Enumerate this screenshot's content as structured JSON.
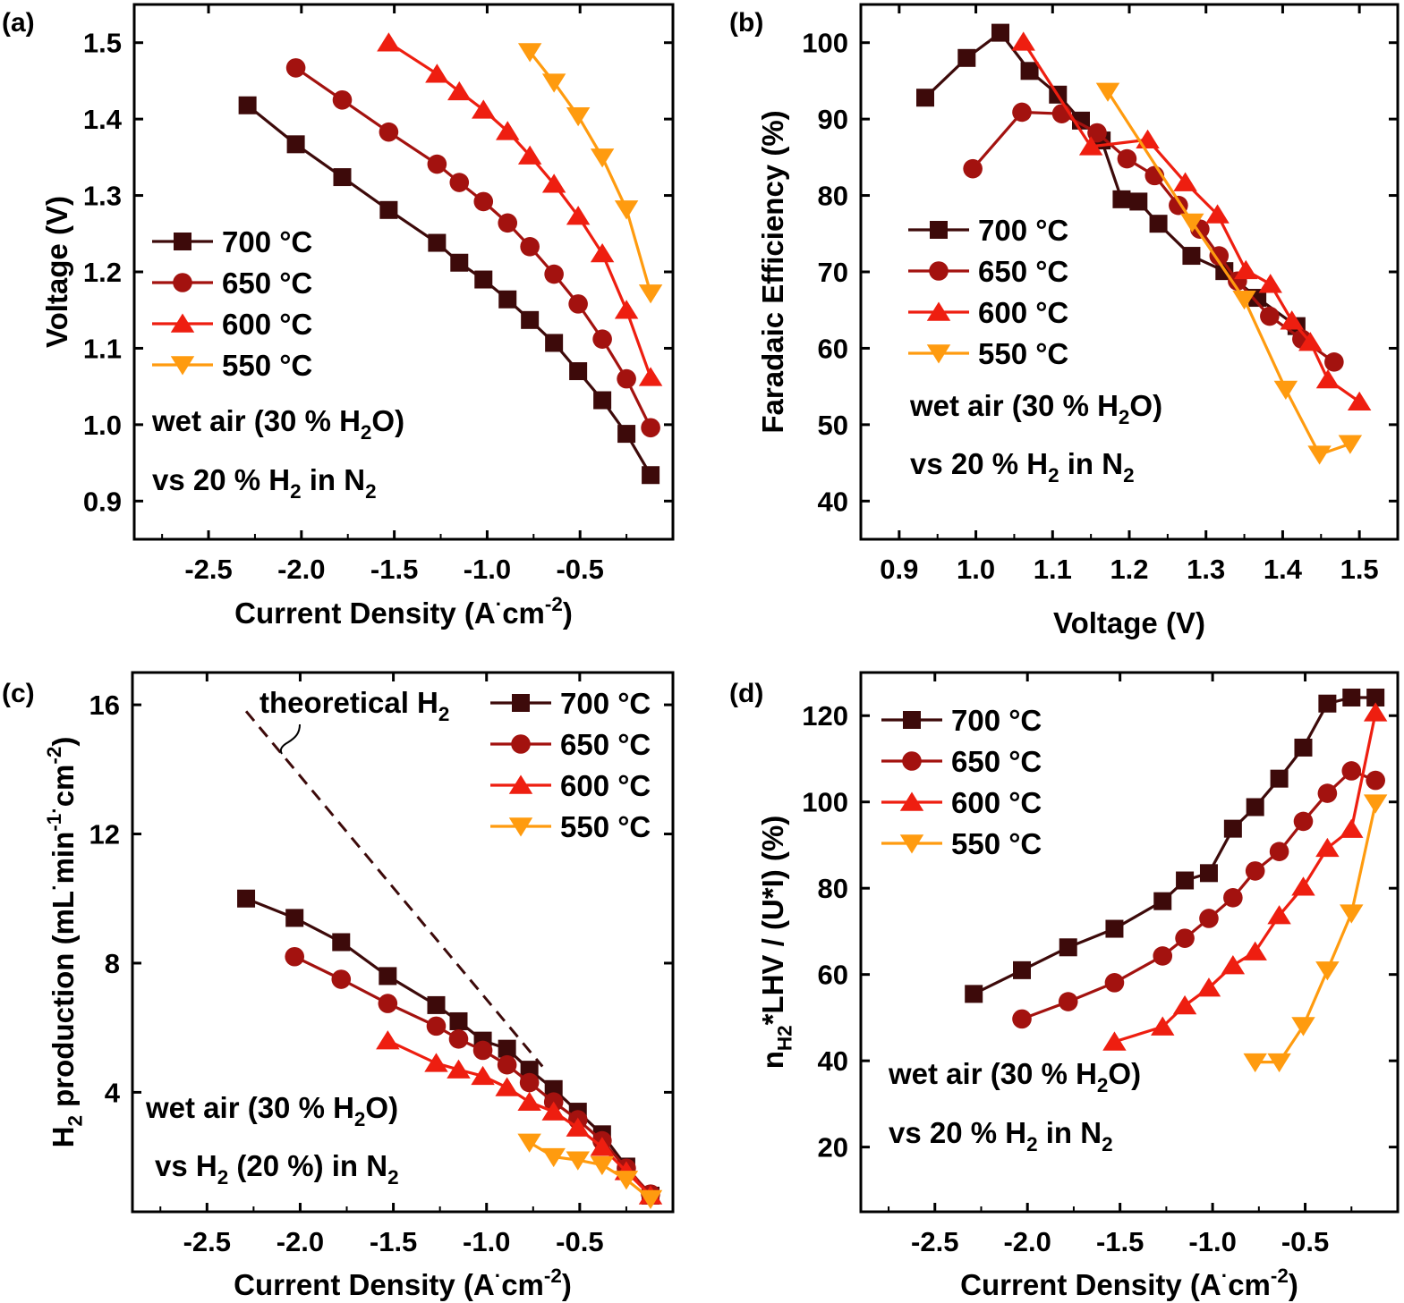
{
  "colors": {
    "c700": "#3d0a0a",
    "c650": "#a3120f",
    "c600": "#ee1e10",
    "c550": "#ff9b0f",
    "axis": "#000000",
    "dashed": "#3d0a0a"
  },
  "chart_data": [
    {
      "panel": "(a)",
      "type": "line",
      "xlabel": "Current Density (A·cm-2)",
      "ylabel": "Voltage (V)",
      "xlim": [
        -2.9,
        0.0
      ],
      "ylim": [
        0.85,
        1.55
      ],
      "xticks": [
        "-2.5",
        "-2.0",
        "-1.5",
        "-1.0",
        "-0.5"
      ],
      "yticks": [
        "0.9",
        "1.0",
        "1.1",
        "1.2",
        "1.3",
        "1.4",
        "1.5"
      ],
      "legend": [
        "700 °C",
        "650 °C",
        "600 °C",
        "550 °C"
      ],
      "annotations": [
        "wet air (30 % H2O)",
        "vs 20 % H2 in N2"
      ],
      "series": [
        {
          "name": "700 °C",
          "marker": "square",
          "x": [
            -2.29,
            -2.03,
            -1.78,
            -1.53,
            -1.27,
            -1.15,
            -1.02,
            -0.89,
            -0.77,
            -0.64,
            -0.51,
            -0.38,
            -0.25,
            -0.12
          ],
          "y": [
            1.418,
            1.367,
            1.324,
            1.281,
            1.238,
            1.212,
            1.19,
            1.164,
            1.137,
            1.107,
            1.07,
            1.032,
            0.988,
            0.934
          ]
        },
        {
          "name": "650 °C",
          "marker": "circle",
          "x": [
            -2.03,
            -1.78,
            -1.53,
            -1.27,
            -1.15,
            -1.02,
            -0.89,
            -0.77,
            -0.64,
            -0.51,
            -0.38,
            -0.25,
            -0.12
          ],
          "y": [
            1.467,
            1.425,
            1.383,
            1.341,
            1.317,
            1.292,
            1.264,
            1.233,
            1.197,
            1.158,
            1.112,
            1.06,
            0.996
          ]
        },
        {
          "name": "600 °C",
          "marker": "triangle-up",
          "x": [
            -1.53,
            -1.27,
            -1.15,
            -1.02,
            -0.89,
            -0.77,
            -0.64,
            -0.51,
            -0.38,
            -0.25,
            -0.12
          ],
          "y": [
            1.5,
            1.459,
            1.436,
            1.412,
            1.384,
            1.352,
            1.315,
            1.273,
            1.224,
            1.15,
            1.062
          ]
        },
        {
          "name": "550 °C",
          "marker": "triangle-down",
          "x": [
            -0.77,
            -0.64,
            -0.51,
            -0.38,
            -0.25,
            -0.12
          ],
          "y": [
            1.488,
            1.448,
            1.404,
            1.35,
            1.282,
            1.172
          ]
        }
      ]
    },
    {
      "panel": "(b)",
      "type": "line",
      "xlabel": "Voltage (V)",
      "ylabel": "Faradaic Efficiency (%)",
      "xlim": [
        0.85,
        1.55
      ],
      "ylim": [
        35,
        105
      ],
      "xticks": [
        "0.9",
        "1.0",
        "1.1",
        "1.2",
        "1.3",
        "1.4",
        "1.5"
      ],
      "yticks": [
        "40",
        "50",
        "60",
        "70",
        "80",
        "90",
        "100"
      ],
      "legend": [
        "700 °C",
        "650 °C",
        "600 °C",
        "550 °C"
      ],
      "annotations": [
        "wet air (30 % H2O)",
        "vs 20 % H2 in N2"
      ],
      "series": [
        {
          "name": "700 °C",
          "marker": "square",
          "x": [
            0.934,
            0.988,
            1.032,
            1.07,
            1.107,
            1.137,
            1.164,
            1.19,
            1.212,
            1.238,
            1.281,
            1.324,
            1.367,
            1.418
          ],
          "y": [
            92.8,
            98.0,
            101.3,
            96.3,
            93.2,
            89.8,
            87.2,
            79.5,
            79.2,
            76.3,
            72.1,
            70.1,
            66.6,
            62.9
          ]
        },
        {
          "name": "650 °C",
          "marker": "circle",
          "x": [
            0.996,
            1.06,
            1.112,
            1.158,
            1.197,
            1.233,
            1.264,
            1.292,
            1.317,
            1.341,
            1.383,
            1.425,
            1.467
          ],
          "y": [
            83.5,
            90.9,
            90.7,
            88.2,
            84.8,
            82.6,
            78.7,
            75.6,
            72.1,
            68.8,
            64.2,
            61.2,
            58.2
          ]
        },
        {
          "name": "600 °C",
          "marker": "triangle-up",
          "x": [
            1.062,
            1.15,
            1.224,
            1.273,
            1.315,
            1.352,
            1.384,
            1.412,
            1.436,
            1.459,
            1.5
          ],
          "y": [
            100.1,
            86.4,
            87.3,
            81.7,
            77.5,
            70.2,
            68.4,
            63.6,
            60.8,
            55.9,
            53.0
          ]
        },
        {
          "name": "550 °C",
          "marker": "triangle-down",
          "x": [
            1.172,
            1.282,
            1.35,
            1.404,
            1.448,
            1.488
          ],
          "y": [
            93.6,
            76.5,
            66.4,
            54.6,
            46.1,
            47.5
          ]
        }
      ]
    },
    {
      "panel": "(c)",
      "type": "line",
      "xlabel": "Current Density (A·cm-2)",
      "ylabel": "H2 production (mL·min-1·cm-2)",
      "xlim": [
        -2.9,
        0.0
      ],
      "ylim": [
        0.3,
        17.0
      ],
      "xticks": [
        "-2.5",
        "-2.0",
        "-1.5",
        "-1.0",
        "-0.5"
      ],
      "yticks": [
        "4",
        "8",
        "12",
        "16"
      ],
      "legend": [
        "700 °C",
        "650 °C",
        "600 °C",
        "550 °C"
      ],
      "annotations": [
        "theoretical H2",
        "wet air (30 % H2O)",
        "vs H2 (20 %) in N2"
      ],
      "theoretical": {
        "x": [
          -2.29,
          -0.7
        ],
        "y": [
          15.8,
          4.8
        ]
      },
      "series": [
        {
          "name": "700 °C",
          "marker": "square",
          "x": [
            -2.29,
            -2.03,
            -1.78,
            -1.53,
            -1.27,
            -1.15,
            -1.02,
            -0.89,
            -0.77,
            -0.64,
            -0.51,
            -0.38,
            -0.25,
            -0.12
          ],
          "y": [
            10.0,
            9.4,
            8.65,
            7.6,
            6.7,
            6.2,
            5.6,
            5.35,
            4.7,
            4.1,
            3.4,
            2.7,
            1.7,
            0.8
          ]
        },
        {
          "name": "650 °C",
          "marker": "circle",
          "x": [
            -2.03,
            -1.78,
            -1.53,
            -1.27,
            -1.15,
            -1.02,
            -0.89,
            -0.77,
            -0.64,
            -0.51,
            -0.38,
            -0.25,
            -0.12
          ],
          "y": [
            8.2,
            7.5,
            6.75,
            6.05,
            5.65,
            5.3,
            4.85,
            4.3,
            3.7,
            3.15,
            2.5,
            1.65,
            0.85
          ]
        },
        {
          "name": "600 °C",
          "marker": "triangle-up",
          "x": [
            -1.53,
            -1.27,
            -1.15,
            -1.02,
            -0.89,
            -0.77,
            -0.64,
            -0.51,
            -0.38,
            -0.25,
            -0.12
          ],
          "y": [
            5.6,
            4.9,
            4.7,
            4.5,
            4.15,
            3.7,
            3.4,
            2.9,
            2.3,
            1.55,
            0.8
          ]
        },
        {
          "name": "550 °C",
          "marker": "triangle-down",
          "x": [
            -0.77,
            -0.64,
            -0.51,
            -0.38,
            -0.25,
            -0.12
          ],
          "y": [
            2.45,
            2.0,
            1.9,
            1.75,
            1.3,
            0.7
          ]
        }
      ]
    },
    {
      "panel": "(d)",
      "type": "line",
      "xlabel": "Current Density (A·cm-2)",
      "ylabel": "nH2*LHV / (U*I) (%)",
      "xlim": [
        -2.9,
        0.0
      ],
      "ylim": [
        5,
        130
      ],
      "xticks": [
        "-2.5",
        "-2.0",
        "-1.5",
        "-1.0",
        "-0.5"
      ],
      "yticks": [
        "20",
        "40",
        "60",
        "80",
        "100",
        "120"
      ],
      "legend": [
        "700 °C",
        "650 °C",
        "600 °C",
        "550 °C"
      ],
      "annotations": [
        "wet air (30 % H2O)",
        "vs 20 % H2 in N2"
      ],
      "series": [
        {
          "name": "700 °C",
          "marker": "square",
          "x": [
            -2.29,
            -2.03,
            -1.78,
            -1.53,
            -1.27,
            -1.15,
            -1.02,
            -0.89,
            -0.77,
            -0.64,
            -0.51,
            -0.38,
            -0.25,
            -0.12
          ],
          "y": [
            55.5,
            61.0,
            66.3,
            70.6,
            77.0,
            81.8,
            83.5,
            93.8,
            98.8,
            105.4,
            112.6,
            122.8,
            124.2,
            124.2
          ]
        },
        {
          "name": "650 °C",
          "marker": "circle",
          "x": [
            -2.03,
            -1.78,
            -1.53,
            -1.27,
            -1.15,
            -1.02,
            -0.89,
            -0.77,
            -0.64,
            -0.51,
            -0.38,
            -0.25,
            -0.12
          ],
          "y": [
            49.7,
            53.7,
            58.1,
            64.3,
            68.4,
            73.0,
            77.8,
            84.0,
            88.5,
            95.5,
            102.0,
            107.2,
            105.0
          ]
        },
        {
          "name": "600 °C",
          "marker": "triangle-up",
          "x": [
            -1.53,
            -1.27,
            -1.15,
            -1.02,
            -0.89,
            -0.77,
            -0.64,
            -0.51,
            -0.38,
            -0.25,
            -0.12
          ],
          "y": [
            44.4,
            47.9,
            52.8,
            56.9,
            62.1,
            65.3,
            73.7,
            80.3,
            89.3,
            93.7,
            120.7
          ]
        },
        {
          "name": "550 °C",
          "marker": "triangle-down",
          "x": [
            -0.77,
            -0.64,
            -0.51,
            -0.38,
            -0.25,
            -0.12
          ],
          "y": [
            39.7,
            39.7,
            48.1,
            61.0,
            74.2,
            99.7
          ]
        }
      ]
    }
  ]
}
